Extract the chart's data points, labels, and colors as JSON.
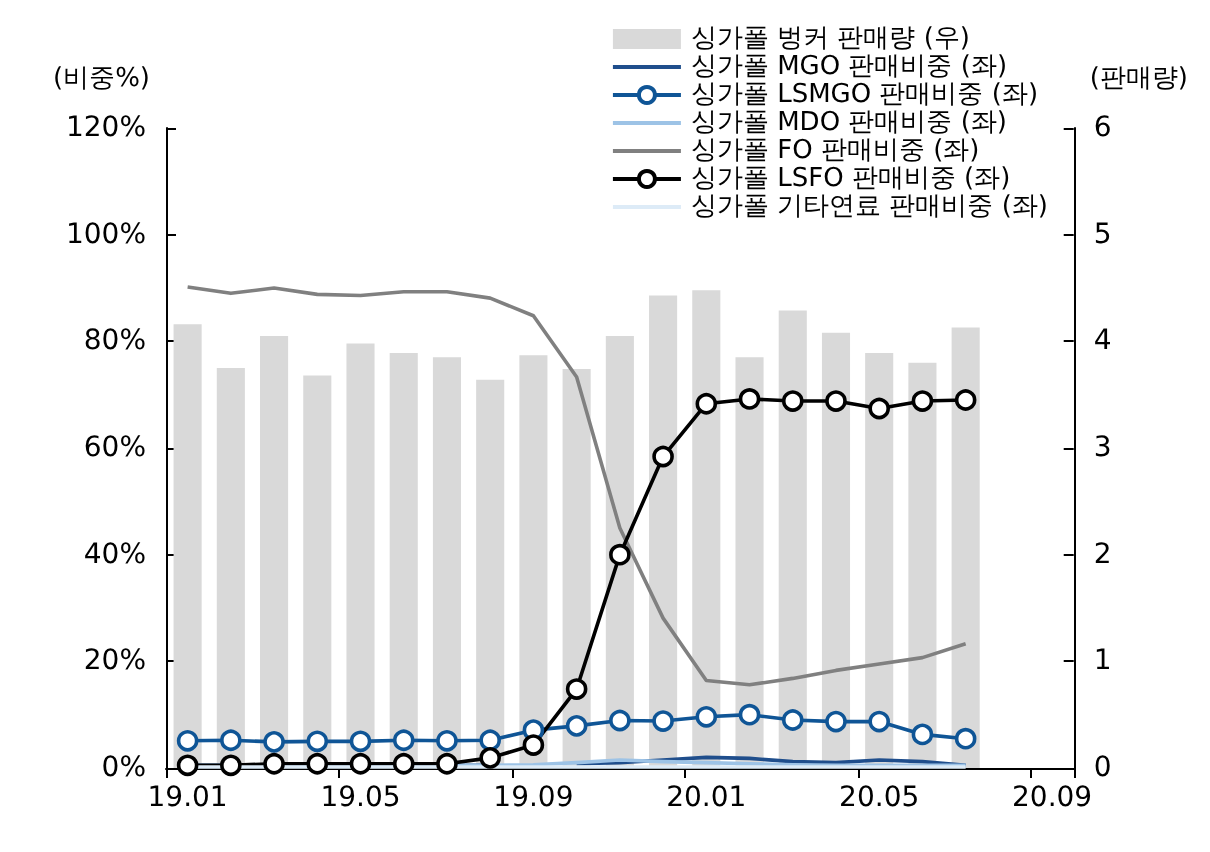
{
  "chart_data": {
    "type": "line",
    "categories": [
      "19.01",
      null,
      null,
      null,
      "19.05",
      null,
      null,
      null,
      "19.09",
      null,
      null,
      null,
      "20.01",
      null,
      null,
      null,
      "20.05",
      null,
      null,
      null,
      "20.09"
    ],
    "series": [
      {
        "name": "싱가폴 벙커 판매량 (우)",
        "type": "bar",
        "axis": "y2",
        "color": "#d9d9d9",
        "values": [
          4.16,
          3.75,
          4.05,
          3.68,
          3.98,
          3.89,
          3.85,
          3.64,
          3.87,
          3.74,
          4.05,
          4.43,
          4.48,
          3.85,
          4.29,
          4.08,
          3.89,
          3.8,
          4.13,
          null,
          null
        ]
      },
      {
        "name": "싱가폴 MGO 판매비중 (좌)",
        "color": "#1f4e8c",
        "marker": "none",
        "values": [
          0.5,
          0.5,
          0.5,
          0.5,
          0.5,
          0.5,
          0.5,
          0.5,
          null,
          0.8,
          1.0,
          1.5,
          2.0,
          1.8,
          1.2,
          1.0,
          1.5,
          1.2,
          0.5,
          null,
          null
        ]
      },
      {
        "name": "싱가폴 LSMGO 판매비중 (좌)",
        "color": "#0f5596",
        "marker": "circle",
        "values": [
          5.1,
          5.2,
          4.9,
          5.0,
          5.0,
          5.2,
          5.1,
          5.2,
          7.1,
          7.9,
          8.9,
          8.8,
          9.6,
          10.0,
          9.0,
          8.7,
          8.7,
          6.3,
          5.5,
          null,
          null
        ]
      },
      {
        "name": "싱가폴 MDO 판매비중 (좌)",
        "color": "#9dc3e6",
        "marker": "none",
        "values": [
          0.5,
          0.5,
          0.5,
          0.5,
          0.5,
          0.5,
          0.5,
          0.5,
          0.6,
          1.0,
          1.5,
          1.2,
          1.0,
          0.8,
          0.6,
          0.5,
          0.5,
          0.5,
          0.5,
          null,
          null
        ]
      },
      {
        "name": "싱가폴 FO 판매비중 (좌)",
        "color": "#808080",
        "marker": "none",
        "values": [
          90.2,
          89.0,
          90.0,
          88.8,
          88.6,
          89.3,
          89.3,
          88.1,
          84.8,
          73.3,
          45.0,
          28.1,
          16.4,
          15.6,
          16.8,
          18.3,
          19.5,
          20.7,
          23.3,
          null,
          null
        ]
      },
      {
        "name": "싱가폴 LSFO 판매비중 (좌)",
        "color": "#000000",
        "marker": "circle",
        "values": [
          0.5,
          0.5,
          0.8,
          0.8,
          0.8,
          0.8,
          0.8,
          1.9,
          4.3,
          14.8,
          40.0,
          58.4,
          68.3,
          69.2,
          68.8,
          68.8,
          67.4,
          68.8,
          69.0,
          null,
          null
        ]
      },
      {
        "name": "싱가폴 기타연료 판매비중 (좌)",
        "color": "#ddebf7",
        "marker": "none",
        "values": [
          0.2,
          0.2,
          0.2,
          0.2,
          0.2,
          0.2,
          0.2,
          0.2,
          0.2,
          0.2,
          0.2,
          0.2,
          0.2,
          0.2,
          0.2,
          0.2,
          0.2,
          0.2,
          0.2,
          null,
          null
        ]
      }
    ],
    "ylabel": "(비중%)",
    "y2label": "(판매량)",
    "ylim": [
      0,
      120
    ],
    "yticks": [
      {
        "value": 0,
        "label": "0%"
      },
      {
        "value": 20,
        "label": "20%"
      },
      {
        "value": 40,
        "label": "40%"
      },
      {
        "value": 60,
        "label": "60%"
      },
      {
        "value": 80,
        "label": "80%"
      },
      {
        "value": 100,
        "label": "100%"
      },
      {
        "value": 120,
        "label": "120%"
      }
    ],
    "y2lim": [
      0,
      6
    ],
    "y2ticks": [
      0,
      1,
      2,
      3,
      4,
      5,
      6
    ],
    "legend": "top right",
    "grid": false
  }
}
